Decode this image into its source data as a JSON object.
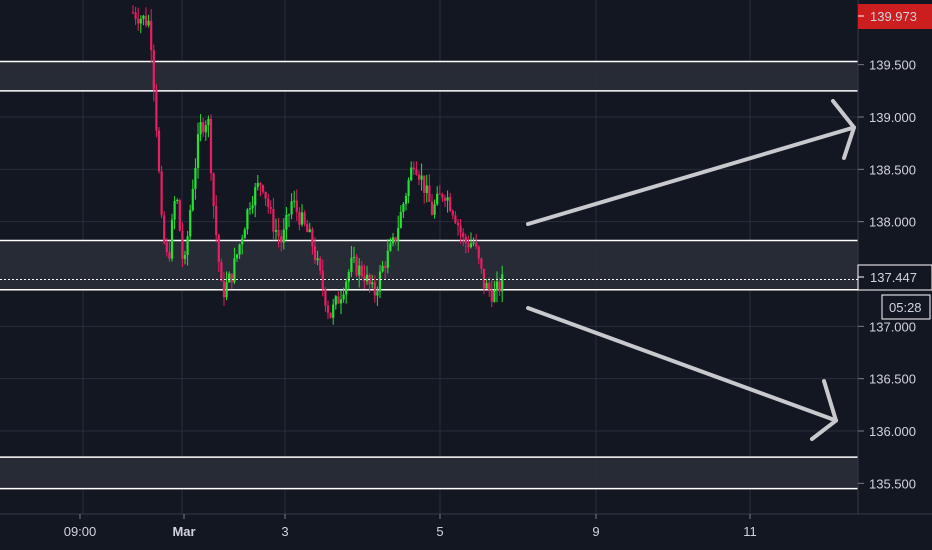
{
  "chart_data": {
    "type": "candlestick",
    "y_axis": {
      "ticks": [
        "139.500",
        "139.000",
        "138.500",
        "138.000",
        "137.000",
        "136.500",
        "136.000",
        "135.500"
      ],
      "tick_values": [
        139.5,
        139.0,
        138.5,
        138.0,
        137.0,
        136.5,
        136.0,
        135.5
      ]
    },
    "x_axis": {
      "labels": [
        "09:00",
        "Mar",
        "3",
        "5",
        "9",
        "11"
      ]
    },
    "high_price_label": "139.973",
    "high_price_value": 139.973,
    "current_price_label": "137.447",
    "current_price_value": 137.447,
    "countdown_label": "05:28",
    "zones": [
      {
        "low": 139.25,
        "high": 139.53
      },
      {
        "low": 137.35,
        "high": 137.82
      },
      {
        "low": 135.45,
        "high": 135.75
      }
    ],
    "projections": [
      {
        "direction": "up",
        "target": 138.9
      },
      {
        "direction": "down",
        "target": 136.1
      }
    ],
    "colors": {
      "background": "#131722",
      "up_candle": "#26e034",
      "down_candle": "#e91e63",
      "zone_fill": "#2a2e39",
      "zone_border": "#ffffff",
      "arrow": "#c8c9cc",
      "high_label_bg": "#cc1e1e",
      "grid": "#2a2e39"
    }
  }
}
